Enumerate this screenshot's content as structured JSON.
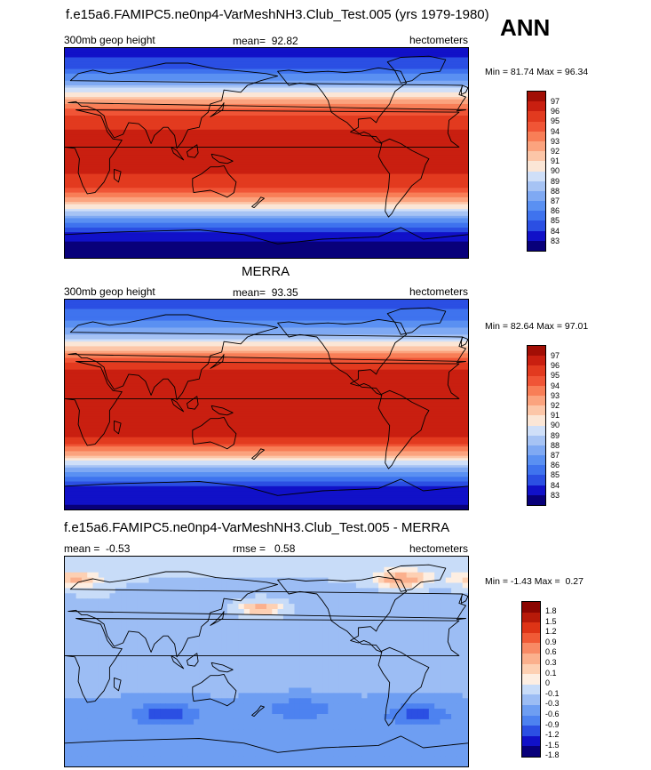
{
  "header": {
    "title": "f.e15a6.FAMIPC5.ne0np4-VarMeshNH3.Club_Test.005 (yrs 1979-1980)",
    "season": "ANN"
  },
  "colors": {
    "ramp_temp": [
      "#08007a",
      "#1111c8",
      "#2b4fe3",
      "#3f73ee",
      "#5a90f2",
      "#7fa9f3",
      "#a6c3f4",
      "#cfdff8",
      "#fbe6d6",
      "#fcc6a8",
      "#fba37e",
      "#f87e57",
      "#f05536",
      "#e23a1f",
      "#c91f10",
      "#a20e05",
      "#7d0402"
    ],
    "ramp_diff": [
      "#08007a",
      "#1111c8",
      "#2b4fe3",
      "#4d82f0",
      "#6e9ef2",
      "#9cbdf4",
      "#c8dcf8",
      "#fdeee2",
      "#fdd0b3",
      "#fbb08d",
      "#f88a65",
      "#f05a36",
      "#de3416",
      "#b71a09",
      "#8b0601"
    ],
    "land_line": "#000000"
  },
  "chart_data": [
    {
      "type": "heatmap",
      "title": "",
      "left_label": "300mb geop height",
      "mean_label": "mean=",
      "mean_value": "92.82",
      "units": "hectometers",
      "min_label": "Min =",
      "min_value": "81.74",
      "max_label": "Max =",
      "max_value": "96.34",
      "levels": [
        97,
        96,
        95,
        94,
        93,
        92,
        91,
        90,
        89,
        88,
        87,
        86,
        85,
        84,
        83
      ],
      "lat_profile": [
        {
          "lat": 90,
          "value": 83.5
        },
        {
          "lat": 75,
          "value": 84.5
        },
        {
          "lat": 60,
          "value": 87.5
        },
        {
          "lat": 50,
          "value": 90.5
        },
        {
          "lat": 40,
          "value": 93.5
        },
        {
          "lat": 30,
          "value": 95.5
        },
        {
          "lat": 15,
          "value": 96.3
        },
        {
          "lat": 0,
          "value": 96.4
        },
        {
          "lat": -15,
          "value": 96.3
        },
        {
          "lat": -30,
          "value": 95.0
        },
        {
          "lat": -40,
          "value": 92.5
        },
        {
          "lat": -50,
          "value": 89.0
        },
        {
          "lat": -60,
          "value": 85.8
        },
        {
          "lat": -70,
          "value": 83.5
        },
        {
          "lat": -90,
          "value": 82.0
        }
      ]
    },
    {
      "type": "heatmap",
      "title": "MERRA",
      "left_label": "300mb geop height",
      "mean_label": "mean=",
      "mean_value": "93.35",
      "units": "hectometers",
      "min_label": "Min =",
      "min_value": "82.64",
      "max_label": "Max =",
      "max_value": "97.01",
      "levels": [
        97,
        96,
        95,
        94,
        93,
        92,
        91,
        90,
        89,
        88,
        87,
        86,
        85,
        84,
        83
      ],
      "lat_profile": [
        {
          "lat": 90,
          "value": 84.5
        },
        {
          "lat": 75,
          "value": 85.5
        },
        {
          "lat": 60,
          "value": 88.0
        },
        {
          "lat": 50,
          "value": 91.0
        },
        {
          "lat": 40,
          "value": 94.0
        },
        {
          "lat": 30,
          "value": 96.2
        },
        {
          "lat": 15,
          "value": 96.9
        },
        {
          "lat": 0,
          "value": 97.0
        },
        {
          "lat": -15,
          "value": 96.9
        },
        {
          "lat": -30,
          "value": 95.8
        },
        {
          "lat": -40,
          "value": 93.2
        },
        {
          "lat": -50,
          "value": 89.5
        },
        {
          "lat": -60,
          "value": 86.3
        },
        {
          "lat": -70,
          "value": 84.0
        },
        {
          "lat": -90,
          "value": 82.8
        }
      ]
    },
    {
      "type": "heatmap",
      "title": "f.e15a6.FAMIPC5.ne0np4-VarMeshNH3.Club_Test.005 - MERRA",
      "left_label": "mean =",
      "left_value": "-0.53",
      "mean_label": "rmse =",
      "mean_value": "0.58",
      "units": "hectometers",
      "min_label": "Min =",
      "min_value": "-1.43",
      "max_label": "Max =",
      "max_value": "0.27",
      "levels": [
        "1.8",
        "1.5",
        "1.2",
        "0.9",
        "0.6",
        "0.3",
        "0.1",
        "0",
        "-0.1",
        "-0.3",
        "-0.6",
        "-0.9",
        "-1.2",
        "-1.5",
        "-1.8"
      ],
      "lat_profile": [
        {
          "lat": 90,
          "value": -0.2
        },
        {
          "lat": 70,
          "value": -0.3
        },
        {
          "lat": 50,
          "value": -0.5
        },
        {
          "lat": 30,
          "value": -0.6
        },
        {
          "lat": 10,
          "value": -0.55
        },
        {
          "lat": -10,
          "value": -0.5
        },
        {
          "lat": -30,
          "value": -0.6
        },
        {
          "lat": -50,
          "value": -0.7
        },
        {
          "lat": -70,
          "value": -0.6
        },
        {
          "lat": -90,
          "value": -0.7
        }
      ],
      "anomalies": [
        {
          "lon": 300,
          "lat": 70,
          "value": 0.2
        },
        {
          "lon": 10,
          "lat": 70,
          "value": 0.1
        },
        {
          "lon": 175,
          "lat": 45,
          "value": 0.15
        },
        {
          "lon": 30,
          "lat": 55,
          "value": -0.3
        },
        {
          "lon": 90,
          "lat": -45,
          "value": -1.4
        },
        {
          "lon": 210,
          "lat": -40,
          "value": -1.2
        },
        {
          "lon": 315,
          "lat": -45,
          "value": -1.3
        }
      ]
    }
  ]
}
